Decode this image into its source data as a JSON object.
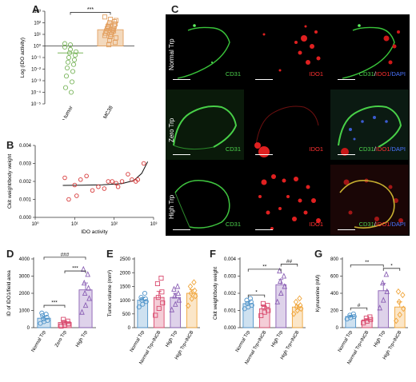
{
  "panels": {
    "A": "A",
    "B": "B",
    "C": "C",
    "D": "D",
    "E": "E",
    "F": "F",
    "G": "G"
  },
  "microscopy": {
    "rows": [
      "Normal Trp",
      "Zero Trp",
      "High Trp"
    ],
    "labels": {
      "cd31": "CD31",
      "ido1": "IDO1",
      "slash": "/",
      "dapi": "DAPI"
    },
    "colors": {
      "cd31": "#4dd34d",
      "ido1": "#ff3030",
      "dapi": "#4a74ff"
    }
  },
  "chart_data": [
    {
      "panel": "A",
      "type": "scatter",
      "ylabel": "Log (IDO activity)",
      "categories": [
        "No tumor",
        "MC38"
      ],
      "ytick_labels": [
        "10⁻⁵",
        "10⁻⁴",
        "10⁻³",
        "10⁻²",
        "10⁻¹",
        "10⁰",
        "10¹",
        "10²",
        "10³"
      ],
      "ylim_log10": [
        -5,
        3
      ],
      "significance": "***",
      "series": [
        {
          "name": "No tumor",
          "color": "#7ab55c",
          "mean_log10": -0.6,
          "values_log10": [
            -0.1,
            -0.3,
            -0.5,
            -0.6,
            -0.8,
            -1.0,
            -1.2,
            -1.4,
            -1.6,
            -1.9,
            -2.2,
            -2.6,
            -3.1,
            -3.6,
            -4.0,
            0.2,
            0.1
          ]
        },
        {
          "name": "MC38",
          "color": "#e3a162",
          "mean_log10": 1.4,
          "values_log10": [
            2.5,
            2.3,
            2.2,
            2.0,
            1.9,
            1.8,
            1.7,
            1.6,
            1.5,
            1.5,
            1.4,
            1.3,
            1.2,
            1.1,
            1.0,
            0.9,
            0.8,
            0.7,
            0.5,
            0.3,
            0.1,
            2.1,
            1.7,
            1.3
          ]
        }
      ]
    },
    {
      "panel": "B",
      "type": "scatter",
      "xlabel": "IDO activity",
      "ylabel": "Ckit weight/body weight",
      "xtick_labels": [
        "10⁰",
        "10¹",
        "10²",
        "10³"
      ],
      "xlim_log10": [
        0,
        3
      ],
      "yticks": [
        0.0,
        0.001,
        0.002,
        0.003,
        0.004
      ],
      "ytick_labels": [
        "0.000",
        "0.001",
        "0.002",
        "0.003",
        "0.004"
      ],
      "ylim": [
        0,
        0.004
      ],
      "marker_color": "#d73a3a",
      "points": [
        {
          "x_log10": 0.75,
          "y": 0.0022
        },
        {
          "x_log10": 0.85,
          "y": 0.001
        },
        {
          "x_log10": 1.0,
          "y": 0.0018
        },
        {
          "x_log10": 1.05,
          "y": 0.0012
        },
        {
          "x_log10": 1.15,
          "y": 0.0021
        },
        {
          "x_log10": 1.3,
          "y": 0.0023
        },
        {
          "x_log10": 1.45,
          "y": 0.0015
        },
        {
          "x_log10": 1.6,
          "y": 0.0017
        },
        {
          "x_log10": 1.75,
          "y": 0.0016
        },
        {
          "x_log10": 1.85,
          "y": 0.002
        },
        {
          "x_log10": 1.95,
          "y": 0.002
        },
        {
          "x_log10": 2.05,
          "y": 0.0019
        },
        {
          "x_log10": 2.1,
          "y": 0.0017
        },
        {
          "x_log10": 2.2,
          "y": 0.002
        },
        {
          "x_log10": 2.35,
          "y": 0.0024
        },
        {
          "x_log10": 2.45,
          "y": 0.0021
        },
        {
          "x_log10": 2.55,
          "y": 0.002
        },
        {
          "x_log10": 2.6,
          "y": 0.0021
        },
        {
          "x_log10": 2.75,
          "y": 0.003
        }
      ],
      "fit": {
        "x_log10": [
          0.7,
          1.2,
          1.7,
          2.2,
          2.5,
          2.7,
          2.85
        ],
        "y": [
          0.00178,
          0.00179,
          0.00181,
          0.00188,
          0.00205,
          0.00245,
          0.0031
        ]
      }
    },
    {
      "panel": "D",
      "type": "bar",
      "ylabel": "ID of IDO1/field area",
      "categories": [
        "Normal Trp",
        "Zero Trp",
        "High Trp"
      ],
      "ylim": [
        0,
        4000
      ],
      "yticks": [
        0,
        1000,
        2000,
        3000,
        4000
      ],
      "ytick_labels": [
        "0",
        "1000",
        "2000",
        "3000",
        "4000"
      ],
      "series": [
        {
          "name": "Normal Trp",
          "color": "#4f93c9",
          "marker": "circle",
          "mean": 550,
          "sem": 120,
          "points": [
            250,
            350,
            420,
            500,
            600,
            700,
            780,
            850
          ]
        },
        {
          "name": "Zero Trp",
          "color": "#d94a6e",
          "marker": "square",
          "mean": 300,
          "sem": 80,
          "points": [
            90,
            150,
            220,
            300,
            380,
            480
          ]
        },
        {
          "name": "High Trp",
          "color": "#8a5fb4",
          "marker": "triangle",
          "mean": 2200,
          "sem": 400,
          "points": [
            900,
            1300,
            1700,
            2000,
            2300,
            2600,
            3100,
            3400
          ]
        }
      ],
      "brackets": [
        {
          "from": 0,
          "to": 1,
          "label": "***",
          "y": 1300
        },
        {
          "from": 1,
          "to": 2,
          "label": "***",
          "y": 3300
        },
        {
          "from": 0,
          "to": 2,
          "label": "###",
          "y": 4100
        }
      ]
    },
    {
      "panel": "E",
      "type": "bar",
      "ylabel": "Tumor volume (mm³)",
      "categories": [
        "Normal Trp",
        "Normal Trp+INCB",
        "High Trp",
        "High Trp+INCB"
      ],
      "ylim": [
        0,
        2500
      ],
      "yticks": [
        0,
        500,
        1000,
        1500,
        2000,
        2500
      ],
      "ytick_labels": [
        "0",
        "500",
        "1000",
        "1500",
        "2000",
        "2500"
      ],
      "series": [
        {
          "name": "Normal Trp",
          "color": "#4f93c9",
          "marker": "circle",
          "mean": 1000,
          "sem": 90,
          "points": [
            750,
            850,
            950,
            1000,
            1050,
            1100,
            1250
          ]
        },
        {
          "name": "Normal Trp+INCB",
          "color": "#d94a6e",
          "marker": "square",
          "mean": 1100,
          "sem": 220,
          "points": [
            450,
            700,
            900,
            1100,
            1300,
            1600,
            1800
          ]
        },
        {
          "name": "High Trp",
          "color": "#8a5fb4",
          "marker": "triangle",
          "mean": 1100,
          "sem": 150,
          "points": [
            650,
            850,
            1000,
            1150,
            1250,
            1400,
            1500
          ]
        },
        {
          "name": "High Trp+INCB",
          "color": "#f0a53a",
          "marker": "diamond",
          "mean": 1250,
          "sem": 130,
          "points": [
            800,
            1050,
            1150,
            1250,
            1350,
            1500,
            1650
          ]
        }
      ]
    },
    {
      "panel": "F",
      "type": "bar",
      "ylabel": "Ckit weight/body weight",
      "categories": [
        "Normal Trp",
        "Normal Trp+INCB",
        "High Trp",
        "High Trp+INCB"
      ],
      "ylim": [
        0,
        0.004
      ],
      "yticks": [
        0,
        0.001,
        0.002,
        0.003,
        0.004
      ],
      "ytick_labels": [
        "0.000",
        "0.001",
        "0.002",
        "0.003",
        "0.004"
      ],
      "series": [
        {
          "name": "Normal Trp",
          "color": "#4f93c9",
          "marker": "circle",
          "mean": 0.0014,
          "sem": 0.00012,
          "points": [
            0.0011,
            0.0012,
            0.0013,
            0.0014,
            0.0015,
            0.0016,
            0.0017
          ]
        },
        {
          "name": "Normal Trp+INCB",
          "color": "#d94a6e",
          "marker": "square",
          "mean": 0.0011,
          "sem": 0.00013,
          "points": [
            0.0007,
            0.0009,
            0.001,
            0.0012,
            0.0013,
            0.0014
          ]
        },
        {
          "name": "High Trp",
          "color": "#8a5fb4",
          "marker": "triangle",
          "mean": 0.0025,
          "sem": 0.0003,
          "points": [
            0.0015,
            0.002,
            0.0024,
            0.0027,
            0.003,
            0.0033
          ]
        },
        {
          "name": "High Trp+INCB",
          "color": "#f0a53a",
          "marker": "diamond",
          "mean": 0.0012,
          "sem": 0.00012,
          "points": [
            0.0008,
            0.001,
            0.0011,
            0.0012,
            0.0013,
            0.0015,
            0.0017
          ]
        }
      ],
      "brackets": [
        {
          "from": 0,
          "to": 1,
          "label": "*",
          "y": 0.0019
        },
        {
          "from": 0,
          "to": 2,
          "label": "**",
          "y": 0.0034
        },
        {
          "from": 2,
          "to": 3,
          "label": "##",
          "y": 0.0037
        }
      ]
    },
    {
      "panel": "G",
      "type": "bar",
      "ylabel": "Kynurenine (nM)",
      "categories": [
        "Normal Trp",
        "Normal Trp+INCB",
        "High Trp",
        "High Trp+INCB"
      ],
      "ylim": [
        0,
        800
      ],
      "yticks": [
        0,
        200,
        400,
        600,
        800
      ],
      "ytick_labels": [
        "0",
        "200",
        "400",
        "600",
        "800"
      ],
      "series": [
        {
          "name": "Normal Trp",
          "color": "#4f93c9",
          "marker": "circle",
          "mean": 130,
          "sem": 15,
          "points": [
            100,
            115,
            130,
            145,
            160
          ]
        },
        {
          "name": "Normal Trp+INCB",
          "color": "#d94a6e",
          "marker": "square",
          "mean": 90,
          "sem": 15,
          "points": [
            55,
            75,
            95,
            110,
            125
          ]
        },
        {
          "name": "High Trp",
          "color": "#8a5fb4",
          "marker": "triangle",
          "mean": 430,
          "sem": 85,
          "points": [
            230,
            320,
            420,
            520,
            620
          ]
        },
        {
          "name": "High Trp+INCB",
          "color": "#f0a53a",
          "marker": "diamond",
          "mean": 240,
          "sem": 60,
          "points": [
            80,
            150,
            220,
            300,
            380,
            420
          ]
        }
      ],
      "brackets": [
        {
          "from": 0,
          "to": 1,
          "label": "#",
          "y": 230
        },
        {
          "from": 2,
          "to": 3,
          "label": "*",
          "y": 690
        },
        {
          "from": 0,
          "to": 2,
          "label": "**",
          "y": 730
        }
      ]
    }
  ]
}
